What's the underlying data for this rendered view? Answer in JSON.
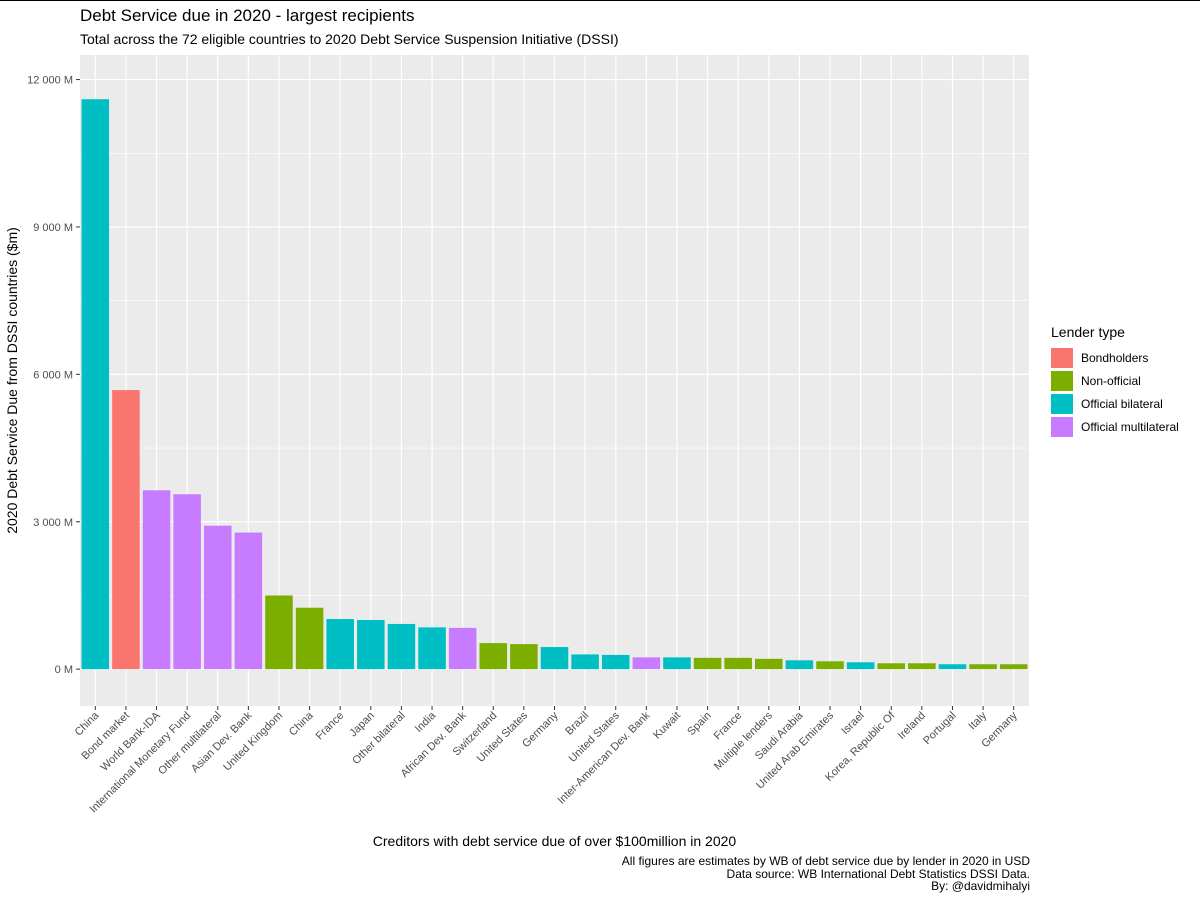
{
  "chart_data": {
    "type": "bar",
    "title": "Debt Service due in 2020 - largest recipients",
    "subtitle": "Total across the 72 eligible countries to 2020 Debt Service Suspension Initiative (DSSI)",
    "xlabel": "Creditors with debt service due of over $100million in 2020",
    "ylabel": "2020 Debt Service Due from DSSI countries ($m)",
    "ylim": [
      -750,
      12500
    ],
    "yticks": [
      0,
      3000,
      6000,
      9000,
      12000
    ],
    "ytick_labels": [
      "0 M",
      "3 000 M",
      "6 000 M",
      "9 000 M",
      "12 000 M"
    ],
    "categories": [
      "China",
      "Bond market",
      "World Bank-IDA",
      "International Monetary Fund",
      "Other multilateral",
      "Asian Dev. Bank",
      "United Kingdom",
      "China",
      "France",
      "Japan",
      "Other bilateral",
      "India",
      "African Dev. Bank",
      "Switzerland",
      "United States",
      "Germany",
      "Brazil",
      "United States",
      "Inter-American Dev. Bank",
      "Kuwait",
      "Spain",
      "France",
      "Multiple lenders",
      "Saudi Arabia",
      "United Arab Emirates",
      "Israel",
      "Korea, Republic Of",
      "Ireland",
      "Portugal",
      "Italy",
      "Germany"
    ],
    "values": [
      11600,
      5680,
      3640,
      3560,
      2920,
      2780,
      1500,
      1250,
      1020,
      1000,
      920,
      850,
      840,
      530,
      510,
      450,
      300,
      290,
      240,
      240,
      230,
      230,
      210,
      180,
      160,
      140,
      120,
      120,
      100,
      100,
      100
    ],
    "lender_types": [
      "Official bilateral",
      "Bondholders",
      "Official multilateral",
      "Official multilateral",
      "Official multilateral",
      "Official multilateral",
      "Non-official",
      "Non-official",
      "Official bilateral",
      "Official bilateral",
      "Official bilateral",
      "Official bilateral",
      "Official multilateral",
      "Non-official",
      "Non-official",
      "Official bilateral",
      "Official bilateral",
      "Official bilateral",
      "Official multilateral",
      "Official bilateral",
      "Non-official",
      "Non-official",
      "Non-official",
      "Official bilateral",
      "Non-official",
      "Official bilateral",
      "Non-official",
      "Non-official",
      "Official bilateral",
      "Non-official",
      "Non-official"
    ],
    "legend": {
      "title": "Lender type",
      "placement": "right",
      "entries": [
        "Bondholders",
        "Non-official",
        "Official bilateral",
        "Official multilateral"
      ]
    },
    "colors": {
      "Bondholders": "#F8766D",
      "Non-official": "#7CAE00",
      "Official bilateral": "#00BFC4",
      "Official multilateral": "#C77CFF",
      "panel_background": "#EBEBEB",
      "grid": "#FFFFFF",
      "tick_text": "#4D4D4D"
    },
    "caption": [
      "All figures are  estimates by WB of debt service due by lender in 2020 in USD",
      "Data source: WB International Debt Statistics DSSI Data.",
      "By: @davidmihalyi"
    ]
  }
}
